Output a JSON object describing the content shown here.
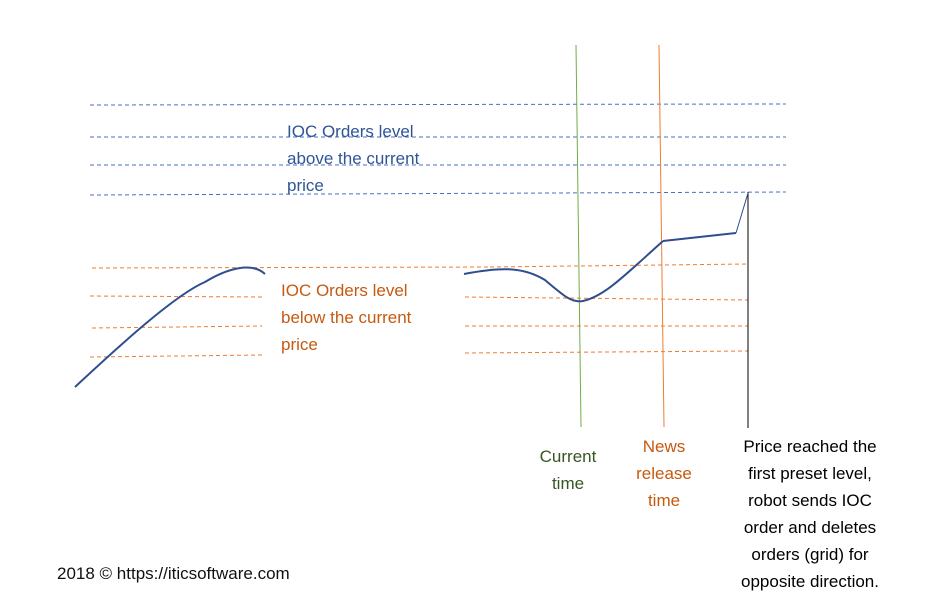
{
  "colors": {
    "blue_level": "#4472C4",
    "orange_level": "#ED7D31",
    "price_curve": "#2F4E8C",
    "current_time_line": "#70AD47",
    "news_line": "#ED7D31",
    "trigger_line": "#000000",
    "above_text": "#2F5597",
    "below_text": "#C55A11",
    "current_text": "#375623",
    "news_text": "#C55A11",
    "price_text": "#000000"
  },
  "labels": {
    "above_levels": "IOC Orders level\nabove the current\nprice",
    "below_levels": "IOC Orders level\nbelow the current\nprice",
    "current_time": "Current\ntime",
    "news_release": "News\nrelease\ntime",
    "price_reached": "Price reached the\nfirst preset level,\nrobot sends IOC\norder and deletes\norders (grid) for\nopposite direction."
  },
  "footer": {
    "copyright": "2018 © https://iticsoftware.com"
  }
}
